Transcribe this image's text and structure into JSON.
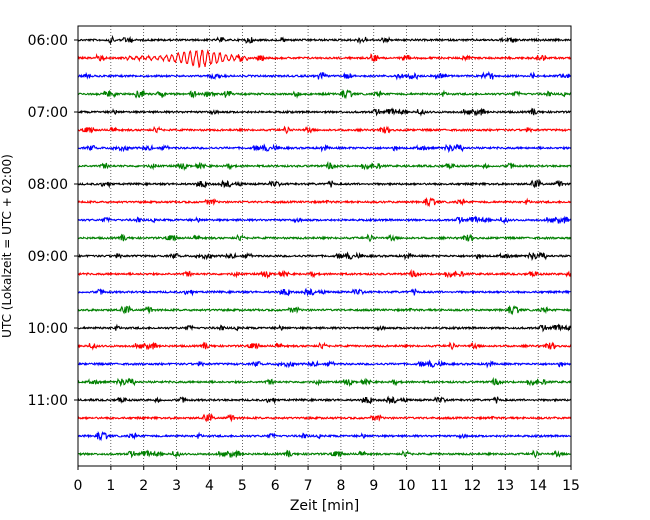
{
  "chart_data": {
    "type": "line",
    "title": "",
    "xlabel": "Zeit  [min]",
    "ylabel": "UTC (Lokalzeit = UTC + 02:00)",
    "xlim": [
      0,
      15
    ],
    "x_ticks": [
      0,
      1,
      2,
      3,
      4,
      5,
      6,
      7,
      8,
      9,
      10,
      11,
      12,
      13,
      14,
      15
    ],
    "y_tick_labels": [
      "06:00",
      "07:00",
      "08:00",
      "09:00",
      "10:00",
      "11:00"
    ],
    "grid": "vertical dotted",
    "trace_interval_min": 15,
    "trace_colors": [
      "#000000",
      "#ff0000",
      "#0000ff",
      "#008000"
    ],
    "traces": [
      {
        "start": "06:00",
        "color": "#000000"
      },
      {
        "start": "06:15",
        "color": "#ff0000",
        "event": {
          "from_min": 1.5,
          "to_min": 5.2,
          "peak_min": 3.7,
          "note": "larger oscillation"
        }
      },
      {
        "start": "06:30",
        "color": "#0000ff"
      },
      {
        "start": "06:45",
        "color": "#008000"
      },
      {
        "start": "07:00",
        "color": "#000000"
      },
      {
        "start": "07:15",
        "color": "#ff0000"
      },
      {
        "start": "07:30",
        "color": "#0000ff"
      },
      {
        "start": "07:45",
        "color": "#008000"
      },
      {
        "start": "08:00",
        "color": "#000000"
      },
      {
        "start": "08:15",
        "color": "#ff0000"
      },
      {
        "start": "08:30",
        "color": "#0000ff"
      },
      {
        "start": "08:45",
        "color": "#008000"
      },
      {
        "start": "09:00",
        "color": "#000000"
      },
      {
        "start": "09:15",
        "color": "#ff0000"
      },
      {
        "start": "09:30",
        "color": "#0000ff"
      },
      {
        "start": "09:45",
        "color": "#008000"
      },
      {
        "start": "10:00",
        "color": "#000000"
      },
      {
        "start": "10:15",
        "color": "#ff0000"
      },
      {
        "start": "10:30",
        "color": "#0000ff"
      },
      {
        "start": "10:45",
        "color": "#008000"
      },
      {
        "start": "11:00",
        "color": "#000000"
      },
      {
        "start": "11:15",
        "color": "#ff0000"
      },
      {
        "start": "11:30",
        "color": "#0000ff"
      },
      {
        "start": "11:45",
        "color": "#008000"
      }
    ]
  }
}
